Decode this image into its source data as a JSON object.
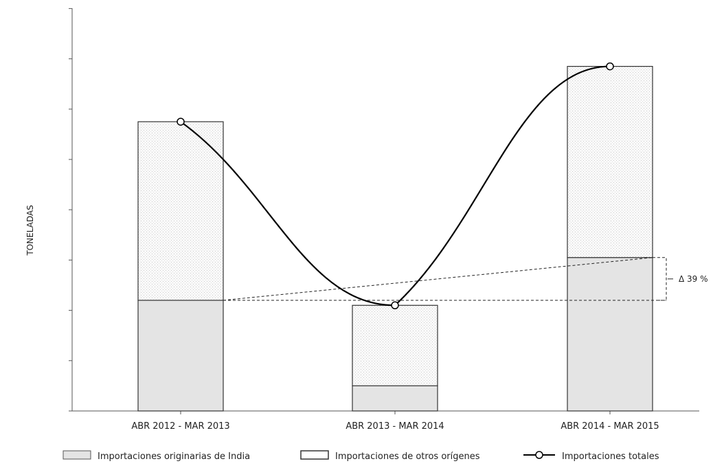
{
  "chart_data": {
    "type": "bar",
    "stacked": true,
    "ylabel": "TONELADAS",
    "y_tick_labels_shown": false,
    "ylim": [
      0,
      8
    ],
    "categories": [
      "ABR 2012 - MAR 2013",
      "ABR 2013 - MAR 2014",
      "ABR 2014 - MAR 2015"
    ],
    "series": [
      {
        "name": "Importaciones originarias de India",
        "kind": "bar",
        "values": [
          2.2,
          0.5,
          3.05
        ],
        "color": "#e4e4e4"
      },
      {
        "name": "Importaciones de otros orígenes",
        "kind": "bar",
        "values": [
          3.55,
          1.6,
          3.8
        ],
        "color": "#f7f7f7"
      },
      {
        "name": "Importaciones totales",
        "kind": "line",
        "values": [
          5.75,
          2.1,
          6.85
        ],
        "color": "#000000"
      }
    ],
    "annotations": [
      {
        "text": "Δ 39 %",
        "from_category": "ABR 2012 - MAR 2013",
        "to_category": "ABR 2014 - MAR 2015",
        "from_value": 2.2,
        "to_value": 3.05
      }
    ],
    "legend": {
      "position": "bottom"
    },
    "grid": false
  }
}
